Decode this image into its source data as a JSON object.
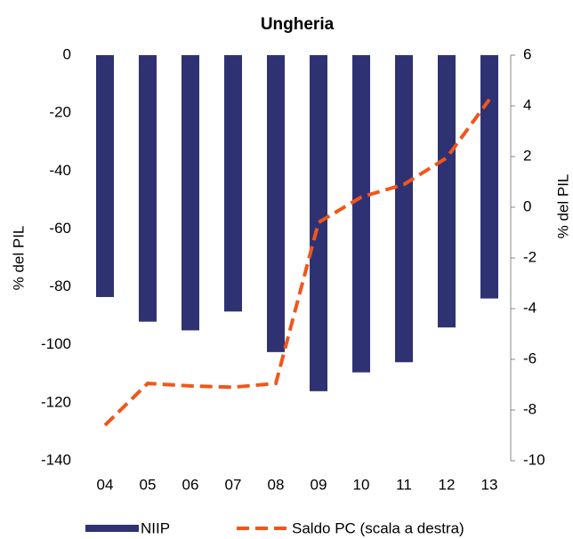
{
  "chart_data": {
    "type": "bar_line",
    "title": "Ungheria",
    "categories": [
      "04",
      "05",
      "06",
      "07",
      "08",
      "09",
      "10",
      "11",
      "12",
      "13"
    ],
    "series": [
      {
        "name": "NIIP",
        "type": "bar",
        "color": "#2f3272",
        "values": [
          -83.5,
          -92,
          -95,
          -88.5,
          -102.5,
          -116,
          -109.5,
          -106,
          -94,
          -84
        ]
      },
      {
        "name": "Saldo PC (scala a destra)",
        "type": "line",
        "axis": "y2",
        "color": "#f0561c",
        "dashed": true,
        "values": [
          -8.6,
          -6.95,
          -7.05,
          -7.1,
          -6.95,
          -0.6,
          0.4,
          0.9,
          1.95,
          4.25
        ]
      }
    ],
    "ylabel": "% del PIL",
    "y2label": "% del PIL",
    "ylim": [
      -140,
      0
    ],
    "yticks": [
      -140,
      -120,
      -100,
      -80,
      -60,
      -40,
      -20,
      0
    ],
    "y2lim": [
      -10,
      6
    ],
    "y2ticks": [
      -10,
      -8,
      -6,
      -4,
      -2,
      0,
      2,
      4,
      6
    ],
    "legend": "bottom"
  }
}
